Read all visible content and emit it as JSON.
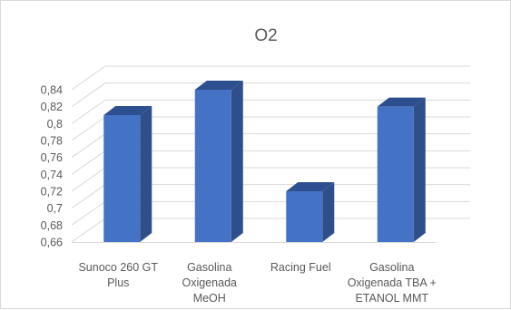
{
  "chart_data": {
    "type": "bar",
    "title": "O2",
    "categories": [
      [
        "Sunoco 260 GT",
        "Plus"
      ],
      [
        "Gasolina",
        "Oxigenada",
        "MeOH"
      ],
      [
        "Racing Fuel"
      ],
      [
        "Gasolina",
        "Oxigenada TBA +",
        "ETANOL MMT"
      ]
    ],
    "values": [
      0.81,
      0.84,
      0.72,
      0.82
    ],
    "ylim": [
      0.66,
      0.84
    ],
    "ytick_step": 0.02,
    "ytick_labels": [
      "0,66",
      "0,68",
      "0,7",
      "0,72",
      "0,74",
      "0,76",
      "0,78",
      "0,8",
      "0,82",
      "0,84"
    ],
    "grid": true,
    "legend": "none",
    "colors": {
      "bar_front": "#4472C4",
      "bar_side": "#2F4F8A",
      "bar_top": "#2E4F8F",
      "grid": "#d9d9d9",
      "text": "#595959"
    }
  }
}
